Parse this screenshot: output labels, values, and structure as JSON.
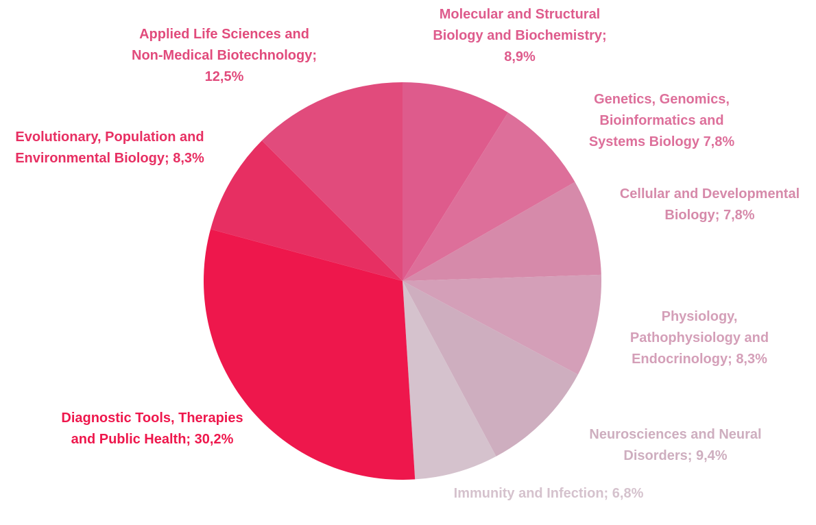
{
  "chart_data": {
    "type": "pie",
    "categories": [
      "Molecular and Structural Biology and Biochemistry;",
      "Genetics, Genomics, Bioinformatics and Systems Biology",
      "Cellular and Developmental Biology;",
      "Physiology, Pathophysiology and Endocrinology;",
      "Neurosciences and Neural Disorders;",
      "Immunity and Infection;",
      "Diagnostic Tools, Therapies and Public Health;",
      "Evolutionary, Population and Environmental Biology;",
      "Applied Life Sciences and Non-Medical Biotechnology;"
    ],
    "values": [
      8.9,
      7.8,
      7.8,
      8.3,
      9.4,
      6.8,
      30.2,
      8.3,
      12.5
    ],
    "value_labels": [
      "8,9%",
      "7,8%",
      "7,8%",
      "8,3%",
      "9,4%",
      "6,8%",
      "30,2%",
      "8,3%",
      "12,5%"
    ],
    "colors": [
      "#de5b8c",
      "#dd6f9a",
      "#d68aaa",
      "#d49fb8",
      "#ceaebf",
      "#d5c2cd",
      "#ee174c",
      "#e72f62",
      "#e14b7c"
    ]
  }
}
